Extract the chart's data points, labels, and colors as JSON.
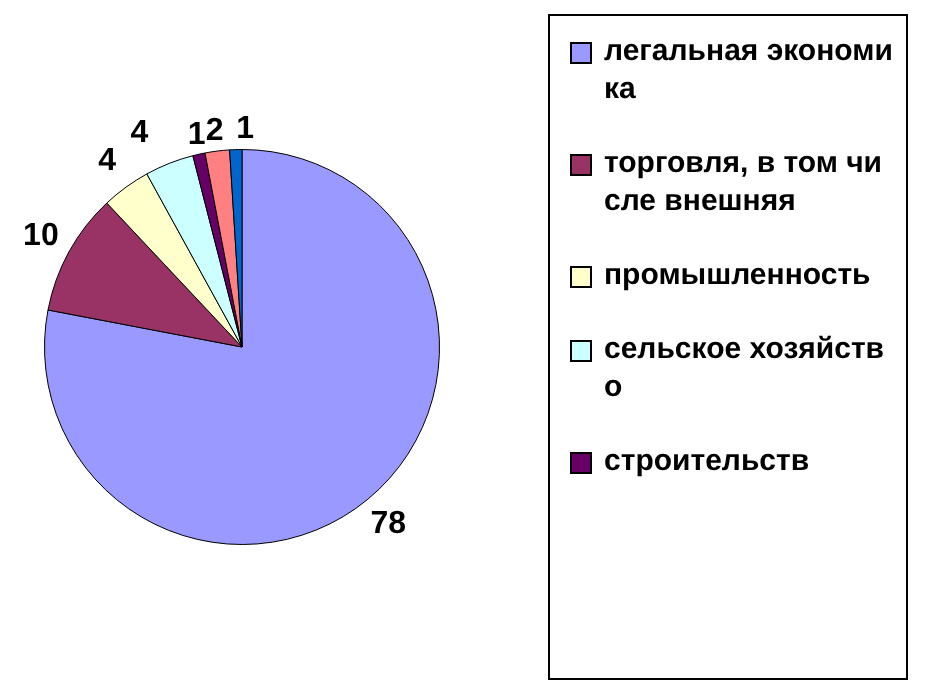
{
  "chart_data": {
    "type": "pie",
    "categories": [
      "легальная экономика",
      "торговля, в том числе внешняя",
      "промышленность",
      "сельское хозяйство",
      "строительств",
      null,
      null
    ],
    "values": [
      78,
      10,
      4,
      4,
      1,
      2,
      1
    ],
    "colors": [
      "#9999ff",
      "#993366",
      "#ffffcc",
      "#ccffff",
      "#660066",
      "#ff8080",
      "#0066cc"
    ],
    "data_labels": true,
    "legend": "right"
  }
}
